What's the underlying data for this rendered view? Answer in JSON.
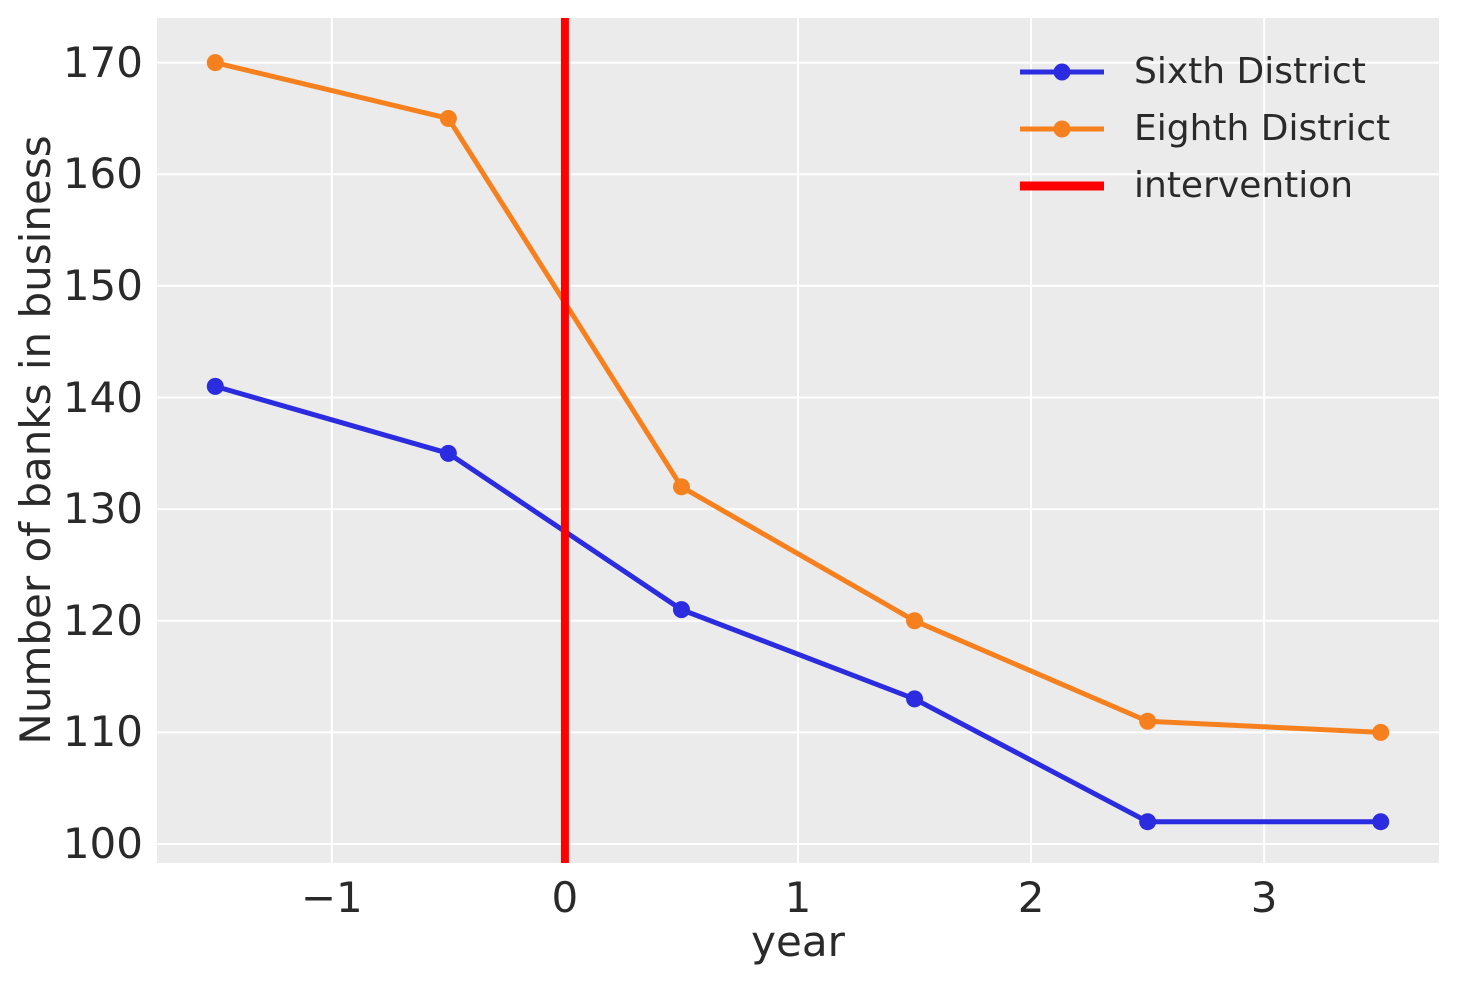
{
  "chart_data": {
    "type": "line",
    "title": "",
    "xlabel": "year",
    "ylabel": "Number of banks in business",
    "x": [
      -1.5,
      -0.5,
      0.5,
      1.5,
      2.5,
      3.5
    ],
    "series": [
      {
        "name": "Sixth District",
        "color": "#2b2bdf",
        "marker": "circle",
        "values": [
          141,
          135,
          121,
          113,
          102,
          102
        ]
      },
      {
        "name": "Eighth District",
        "color": "#f6801e",
        "marker": "circle",
        "values": [
          170,
          165,
          132,
          120,
          111,
          110
        ]
      }
    ],
    "intervention": {
      "label": "intervention",
      "color": "#ff0000",
      "x": 0
    },
    "xticks": [
      -1,
      0,
      1,
      2,
      3
    ],
    "yticks": [
      100,
      110,
      120,
      130,
      140,
      150,
      160,
      170
    ],
    "xlim": [
      -1.75,
      3.75
    ],
    "ylim": [
      98.3,
      174.0
    ],
    "grid": true,
    "grid_color": "#ffffff",
    "plot_bg": "#ebebeb",
    "legend_position": "upper right"
  }
}
